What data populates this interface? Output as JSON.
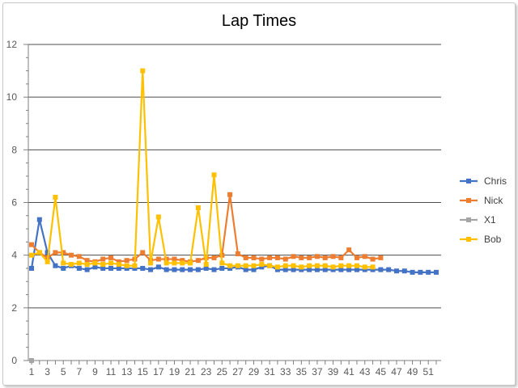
{
  "chart_data": {
    "type": "line",
    "title": "Lap Times",
    "xlabel": "",
    "ylabel": "",
    "xlim": [
      1,
      52
    ],
    "ylim": [
      0,
      12
    ],
    "y_ticks": [
      0,
      2,
      4,
      6,
      8,
      10,
      12
    ],
    "x_tick_labels": [
      1,
      3,
      5,
      7,
      9,
      11,
      13,
      15,
      17,
      19,
      21,
      23,
      25,
      27,
      29,
      31,
      33,
      35,
      37,
      39,
      41,
      43,
      45,
      47,
      49,
      51
    ],
    "grid": "horizontal",
    "legend": "right",
    "series": [
      {
        "name": "Chris",
        "color": "#4472C4",
        "x": [
          1,
          2,
          3,
          4,
          5,
          6,
          7,
          8,
          9,
          10,
          11,
          12,
          13,
          14,
          15,
          16,
          17,
          18,
          19,
          20,
          21,
          22,
          23,
          24,
          25,
          26,
          27,
          28,
          29,
          30,
          31,
          32,
          33,
          34,
          35,
          36,
          37,
          38,
          39,
          40,
          41,
          42,
          43,
          44,
          45,
          46,
          47,
          48,
          49,
          50,
          51,
          52
        ],
        "values": [
          3.5,
          5.35,
          4.1,
          3.6,
          3.5,
          3.6,
          3.5,
          3.45,
          3.55,
          3.5,
          3.5,
          3.5,
          3.5,
          3.5,
          3.5,
          3.45,
          3.55,
          3.45,
          3.45,
          3.45,
          3.45,
          3.45,
          3.5,
          3.45,
          3.5,
          3.5,
          3.55,
          3.45,
          3.45,
          3.55,
          3.6,
          3.45,
          3.45,
          3.45,
          3.45,
          3.45,
          3.45,
          3.45,
          3.45,
          3.45,
          3.45,
          3.45,
          3.45,
          3.45,
          3.45,
          3.45,
          3.4,
          3.4,
          3.35,
          3.35,
          3.35,
          3.35
        ]
      },
      {
        "name": "Nick",
        "color": "#ED7D31",
        "x": [
          1,
          2,
          3,
          4,
          5,
          6,
          7,
          8,
          9,
          10,
          11,
          12,
          13,
          14,
          15,
          16,
          17,
          18,
          19,
          20,
          21,
          22,
          23,
          24,
          25,
          26,
          27,
          28,
          29,
          30,
          31,
          32,
          33,
          34,
          35,
          36,
          37,
          38,
          39,
          40,
          41,
          42,
          43,
          44,
          45
        ],
        "values": [
          4.4,
          4.1,
          3.9,
          4.1,
          4.1,
          4.0,
          3.95,
          3.8,
          3.75,
          3.85,
          3.9,
          3.75,
          3.8,
          3.85,
          4.1,
          3.8,
          3.85,
          3.85,
          3.85,
          3.8,
          3.75,
          3.8,
          3.9,
          3.9,
          4.0,
          6.3,
          4.05,
          3.9,
          3.9,
          3.85,
          3.9,
          3.9,
          3.85,
          3.95,
          3.9,
          3.9,
          3.95,
          3.9,
          3.95,
          3.9,
          4.2,
          3.9,
          3.95,
          3.85,
          3.9
        ]
      },
      {
        "name": "X1",
        "color": "#A5A5A5",
        "x": [
          1
        ],
        "values": [
          0
        ]
      },
      {
        "name": "Bob",
        "color": "#FFC000",
        "x": [
          1,
          2,
          3,
          4,
          5,
          6,
          7,
          8,
          9,
          10,
          11,
          12,
          13,
          14,
          15,
          16,
          17,
          18,
          19,
          20,
          21,
          22,
          23,
          24,
          25,
          26,
          27,
          28,
          29,
          30,
          31,
          32,
          33,
          34,
          35,
          36,
          37,
          38,
          39,
          40,
          41,
          42,
          43,
          44
        ],
        "values": [
          4.0,
          4.1,
          3.75,
          6.2,
          3.7,
          3.65,
          3.7,
          3.65,
          3.7,
          3.65,
          3.7,
          3.65,
          3.6,
          3.6,
          11.0,
          3.7,
          5.45,
          3.7,
          3.7,
          3.7,
          3.7,
          5.8,
          3.65,
          7.05,
          3.7,
          3.6,
          3.6,
          3.6,
          3.6,
          3.65,
          3.6,
          3.55,
          3.6,
          3.6,
          3.55,
          3.6,
          3.6,
          3.6,
          3.55,
          3.6,
          3.6,
          3.6,
          3.55,
          3.55
        ]
      }
    ]
  }
}
